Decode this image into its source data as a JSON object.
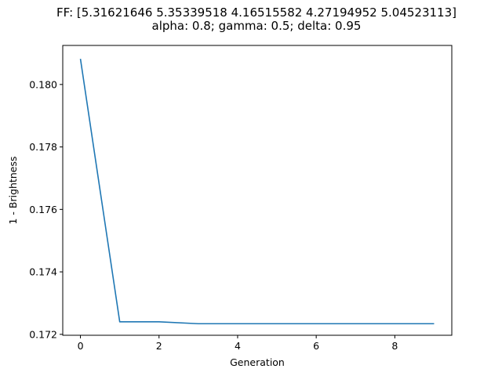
{
  "chart_data": {
    "type": "line",
    "title": "FF: [5.31621646 5.35339518 4.16515582 4.27194952 5.04523113]",
    "subtitle": "alpha: 0.8; gamma: 0.5; delta: 0.95",
    "xlabel": "Generation",
    "ylabel": "1 - Brightness",
    "xlim": [
      -0.45,
      9.45
    ],
    "ylim": [
      0.17197,
      0.18125
    ],
    "xticks": [
      0,
      2,
      4,
      6,
      8
    ],
    "xtick_labels": [
      "0",
      "2",
      "4",
      "6",
      "8"
    ],
    "yticks": [
      0.172,
      0.174,
      0.176,
      0.178,
      0.18
    ],
    "ytick_labels": [
      "0.172",
      "0.174",
      "0.176",
      "0.178",
      "0.180"
    ],
    "grid": false,
    "series": [
      {
        "color": "#1f77b4",
        "x": [
          0,
          1,
          2,
          3,
          4,
          5,
          6,
          7,
          8,
          9
        ],
        "y": [
          0.18082,
          0.1724,
          0.1724,
          0.17234,
          0.17234,
          0.17234,
          0.17234,
          0.17234,
          0.17234,
          0.17234
        ]
      }
    ]
  }
}
